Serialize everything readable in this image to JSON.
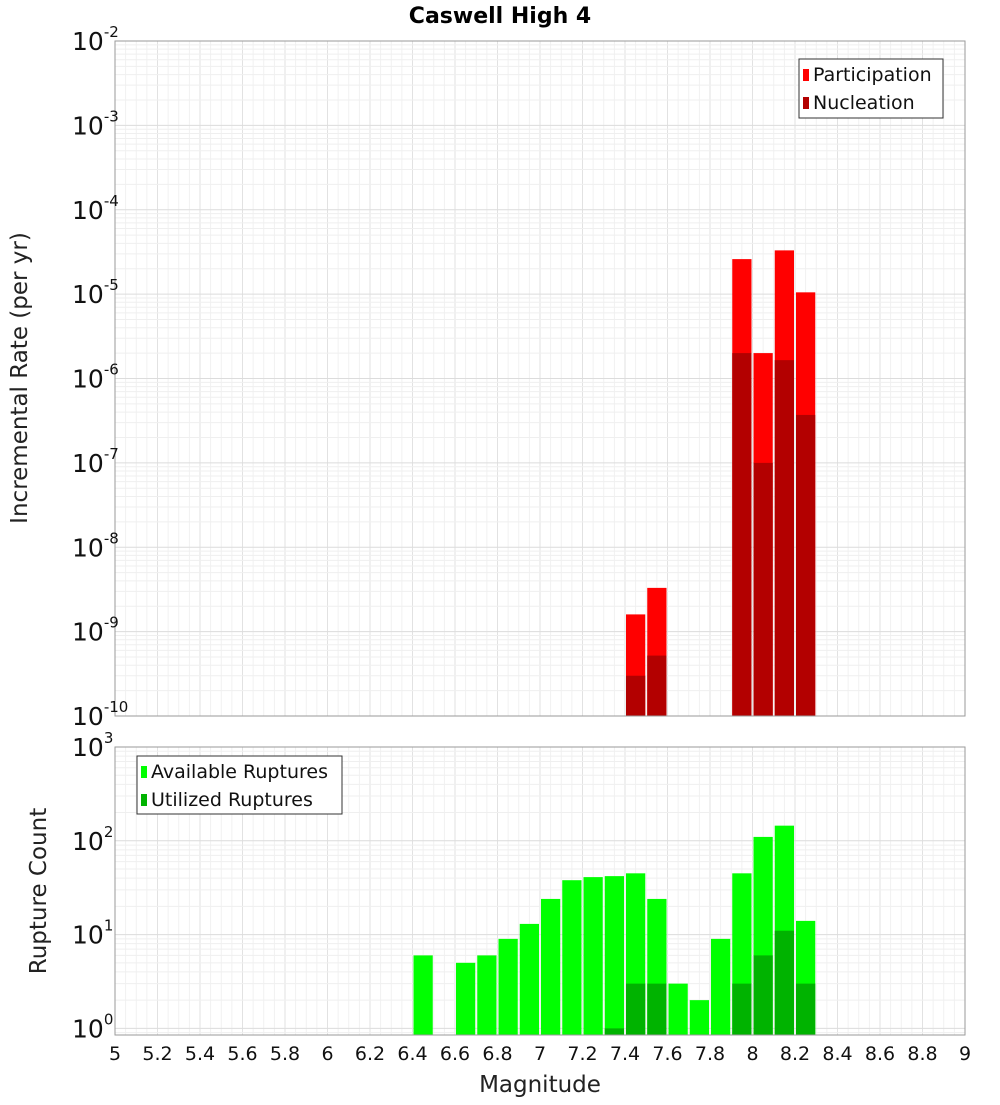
{
  "chart_data": [
    {
      "type": "bar",
      "title": "Caswell High 4",
      "xlabel": "",
      "ylabel": "Incremental Rate (per yr)",
      "yscale": "log",
      "ylim": [
        1e-10,
        0.01
      ],
      "xlim": [
        5,
        9
      ],
      "bar_width": 0.1,
      "legend_position": "top-right",
      "grid": true,
      "series": [
        {
          "name": "Participation",
          "color": "#ff0000",
          "x": [
            7.45,
            7.55,
            7.95,
            8.05,
            8.15,
            8.25
          ],
          "values": [
            1.6e-09,
            3.3e-09,
            2.6e-05,
            2e-06,
            3.3e-05,
            1.05e-05
          ]
        },
        {
          "name": "Nucleation",
          "color": "#b30000",
          "x": [
            7.45,
            7.55,
            7.95,
            8.05,
            8.15,
            8.25
          ],
          "values": [
            3e-10,
            5.2e-10,
            2e-06,
            1e-07,
            1.65e-06,
            3.7e-07
          ]
        }
      ]
    },
    {
      "type": "bar",
      "title": "",
      "xlabel": "Magnitude",
      "ylabel": "Rupture Count",
      "yscale": "log",
      "ylim": [
        0.85,
        1000
      ],
      "xlim": [
        5,
        9
      ],
      "bar_width": 0.1,
      "legend_position": "top-left",
      "grid": true,
      "x_ticks": [
        "5",
        "5.2",
        "5.4",
        "5.6",
        "5.8",
        "6",
        "6.2",
        "6.4",
        "6.6",
        "6.8",
        "7",
        "7.2",
        "7.4",
        "7.6",
        "7.8",
        "8",
        "8.2",
        "8.4",
        "8.6",
        "8.8",
        "9"
      ],
      "series": [
        {
          "name": "Available Ruptures",
          "color": "#00ff00",
          "x": [
            6.45,
            6.65,
            6.75,
            6.85,
            6.95,
            7.05,
            7.15,
            7.25,
            7.35,
            7.45,
            7.55,
            7.65,
            7.75,
            7.85,
            7.95,
            8.05,
            8.15,
            8.25
          ],
          "values": [
            6,
            5,
            6,
            9,
            13,
            24,
            38,
            41,
            42,
            45,
            24,
            3,
            2,
            9,
            45,
            110,
            145,
            14
          ]
        },
        {
          "name": "Utilized Ruptures",
          "color": "#00b300",
          "x": [
            7.35,
            7.45,
            7.55,
            7.95,
            8.05,
            8.15,
            8.25
          ],
          "values": [
            1,
            3,
            3,
            3,
            6,
            11,
            3
          ]
        }
      ]
    }
  ],
  "y_tick_base": "10",
  "top_y_exponents": [
    "-10",
    "-9",
    "-8",
    "-7",
    "-6",
    "-5",
    "-4",
    "-3",
    "-2"
  ],
  "bottom_y_exponents": [
    "0",
    "1",
    "2",
    "3"
  ]
}
